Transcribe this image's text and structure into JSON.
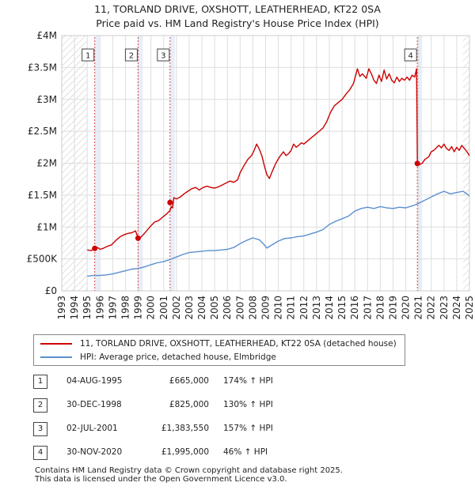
{
  "title_line1": "11, TORLAND DRIVE, OXSHOTT, LEATHERHEAD, KT22 0SA",
  "title_line2": "Price paid vs. HM Land Registry's House Price Index (HPI)",
  "colors": {
    "property": "#cc0000",
    "hpi": "#5b8fd0",
    "grid": "#dddddd",
    "band": "#e8eef8",
    "hatch": "#cccccc"
  },
  "chart_data": {
    "type": "line",
    "xlim": [
      1993,
      2025
    ],
    "ylim": [
      0,
      4000000
    ],
    "x_ticks": [
      "1993",
      "1994",
      "1995",
      "1996",
      "1997",
      "1998",
      "1999",
      "2000",
      "2001",
      "2002",
      "2003",
      "2004",
      "2005",
      "2006",
      "2007",
      "2008",
      "2009",
      "2010",
      "2011",
      "2012",
      "2013",
      "2014",
      "2015",
      "2016",
      "2017",
      "2018",
      "2019",
      "2020",
      "2021",
      "2022",
      "2023",
      "2024",
      "2025"
    ],
    "y_ticks": [
      {
        "value": 0,
        "label": "£0"
      },
      {
        "value": 500000,
        "label": "£500K"
      },
      {
        "value": 1000000,
        "label": "£1M"
      },
      {
        "value": 1500000,
        "label": "£1.5M"
      },
      {
        "value": 2000000,
        "label": "£2M"
      },
      {
        "value": 2500000,
        "label": "£2.5M"
      },
      {
        "value": 3000000,
        "label": "£3M"
      },
      {
        "value": 3500000,
        "label": "£3.5M"
      },
      {
        "value": 4000000,
        "label": "£4M"
      }
    ],
    "hatched_ranges": [
      [
        1993,
        1995.0
      ],
      [
        2024.5,
        2025
      ]
    ],
    "series": [
      {
        "name": "11, TORLAND DRIVE, OXSHOTT, LEATHERHEAD, KT22 0SA (detached house)",
        "color": "#cc0000",
        "points": [
          [
            1995.0,
            640000
          ],
          [
            1995.3,
            630000
          ],
          [
            1995.59,
            665000
          ],
          [
            1995.8,
            680000
          ],
          [
            1996.0,
            650000
          ],
          [
            1996.3,
            670000
          ],
          [
            1996.6,
            700000
          ],
          [
            1996.9,
            720000
          ],
          [
            1997.1,
            760000
          ],
          [
            1997.3,
            800000
          ],
          [
            1997.6,
            850000
          ],
          [
            1997.9,
            880000
          ],
          [
            1998.2,
            900000
          ],
          [
            1998.5,
            910000
          ],
          [
            1998.8,
            940000
          ],
          [
            1998.99,
            825000
          ],
          [
            1999.1,
            820000
          ],
          [
            1999.4,
            880000
          ],
          [
            1999.7,
            950000
          ],
          [
            2000.0,
            1020000
          ],
          [
            2000.3,
            1080000
          ],
          [
            2000.6,
            1100000
          ],
          [
            2000.9,
            1150000
          ],
          [
            2001.2,
            1200000
          ],
          [
            2001.5,
            1260000
          ],
          [
            2001.6,
            1320000
          ],
          [
            2001.7,
            1300000
          ],
          [
            2001.8,
            1460000
          ],
          [
            2002.0,
            1440000
          ],
          [
            2002.3,
            1470000
          ],
          [
            2002.6,
            1520000
          ],
          [
            2002.9,
            1560000
          ],
          [
            2003.2,
            1600000
          ],
          [
            2003.5,
            1620000
          ],
          [
            2003.8,
            1580000
          ],
          [
            2004.1,
            1620000
          ],
          [
            2004.4,
            1640000
          ],
          [
            2004.7,
            1620000
          ],
          [
            2005.0,
            1610000
          ],
          [
            2005.3,
            1630000
          ],
          [
            2005.6,
            1660000
          ],
          [
            2005.9,
            1690000
          ],
          [
            2006.2,
            1720000
          ],
          [
            2006.5,
            1700000
          ],
          [
            2006.8,
            1740000
          ],
          [
            2007.0,
            1850000
          ],
          [
            2007.3,
            1960000
          ],
          [
            2007.6,
            2060000
          ],
          [
            2007.9,
            2120000
          ],
          [
            2008.1,
            2200000
          ],
          [
            2008.3,
            2300000
          ],
          [
            2008.5,
            2220000
          ],
          [
            2008.7,
            2120000
          ],
          [
            2008.9,
            1960000
          ],
          [
            2009.1,
            1820000
          ],
          [
            2009.3,
            1760000
          ],
          [
            2009.5,
            1860000
          ],
          [
            2009.8,
            2000000
          ],
          [
            2010.1,
            2100000
          ],
          [
            2010.4,
            2180000
          ],
          [
            2010.6,
            2120000
          ],
          [
            2010.8,
            2150000
          ],
          [
            2011.0,
            2200000
          ],
          [
            2011.2,
            2300000
          ],
          [
            2011.4,
            2250000
          ],
          [
            2011.6,
            2280000
          ],
          [
            2011.8,
            2320000
          ],
          [
            2012.0,
            2300000
          ],
          [
            2012.3,
            2350000
          ],
          [
            2012.6,
            2400000
          ],
          [
            2012.9,
            2450000
          ],
          [
            2013.2,
            2500000
          ],
          [
            2013.5,
            2550000
          ],
          [
            2013.8,
            2650000
          ],
          [
            2014.1,
            2800000
          ],
          [
            2014.4,
            2900000
          ],
          [
            2014.7,
            2950000
          ],
          [
            2015.0,
            3000000
          ],
          [
            2015.3,
            3080000
          ],
          [
            2015.6,
            3150000
          ],
          [
            2015.9,
            3250000
          ],
          [
            2016.1,
            3400000
          ],
          [
            2016.2,
            3480000
          ],
          [
            2016.4,
            3360000
          ],
          [
            2016.6,
            3400000
          ],
          [
            2016.9,
            3330000
          ],
          [
            2017.1,
            3480000
          ],
          [
            2017.3,
            3400000
          ],
          [
            2017.5,
            3300000
          ],
          [
            2017.7,
            3250000
          ],
          [
            2017.9,
            3380000
          ],
          [
            2018.1,
            3280000
          ],
          [
            2018.3,
            3460000
          ],
          [
            2018.5,
            3320000
          ],
          [
            2018.7,
            3400000
          ],
          [
            2018.9,
            3300000
          ],
          [
            2019.1,
            3260000
          ],
          [
            2019.3,
            3350000
          ],
          [
            2019.5,
            3280000
          ],
          [
            2019.7,
            3330000
          ],
          [
            2019.9,
            3300000
          ],
          [
            2020.1,
            3350000
          ],
          [
            2020.3,
            3300000
          ],
          [
            2020.5,
            3380000
          ],
          [
            2020.7,
            3350000
          ],
          [
            2020.85,
            3480000
          ],
          [
            2020.91,
            1995000
          ],
          [
            2021.1,
            1980000
          ],
          [
            2021.3,
            2000000
          ],
          [
            2021.5,
            2060000
          ],
          [
            2021.8,
            2100000
          ],
          [
            2022.0,
            2180000
          ],
          [
            2022.2,
            2200000
          ],
          [
            2022.4,
            2240000
          ],
          [
            2022.6,
            2280000
          ],
          [
            2022.8,
            2240000
          ],
          [
            2023.0,
            2300000
          ],
          [
            2023.2,
            2230000
          ],
          [
            2023.4,
            2200000
          ],
          [
            2023.6,
            2260000
          ],
          [
            2023.8,
            2180000
          ],
          [
            2024.0,
            2250000
          ],
          [
            2024.2,
            2200000
          ],
          [
            2024.4,
            2280000
          ],
          [
            2024.6,
            2230000
          ],
          [
            2024.8,
            2180000
          ],
          [
            2025.0,
            2120000
          ]
        ]
      },
      {
        "name": "HPI: Average price, detached house, Elmbridge",
        "color": "#5b8fd0",
        "points": [
          [
            1995.0,
            230000
          ],
          [
            1995.5,
            240000
          ],
          [
            1996.0,
            242000
          ],
          [
            1996.5,
            250000
          ],
          [
            1997.0,
            265000
          ],
          [
            1997.5,
            290000
          ],
          [
            1998.0,
            315000
          ],
          [
            1998.5,
            340000
          ],
          [
            1999.0,
            350000
          ],
          [
            1999.5,
            375000
          ],
          [
            2000.0,
            410000
          ],
          [
            2000.5,
            440000
          ],
          [
            2001.0,
            460000
          ],
          [
            2001.5,
            490000
          ],
          [
            2002.0,
            530000
          ],
          [
            2002.5,
            570000
          ],
          [
            2003.0,
            600000
          ],
          [
            2003.5,
            610000
          ],
          [
            2004.0,
            620000
          ],
          [
            2004.5,
            630000
          ],
          [
            2005.0,
            630000
          ],
          [
            2005.5,
            640000
          ],
          [
            2006.0,
            650000
          ],
          [
            2006.5,
            680000
          ],
          [
            2007.0,
            740000
          ],
          [
            2007.5,
            790000
          ],
          [
            2008.0,
            830000
          ],
          [
            2008.5,
            800000
          ],
          [
            2008.9,
            720000
          ],
          [
            2009.1,
            670000
          ],
          [
            2009.5,
            720000
          ],
          [
            2010.0,
            780000
          ],
          [
            2010.5,
            820000
          ],
          [
            2011.0,
            830000
          ],
          [
            2011.5,
            850000
          ],
          [
            2012.0,
            860000
          ],
          [
            2012.5,
            890000
          ],
          [
            2013.0,
            920000
          ],
          [
            2013.5,
            960000
          ],
          [
            2014.0,
            1040000
          ],
          [
            2014.5,
            1090000
          ],
          [
            2015.0,
            1130000
          ],
          [
            2015.5,
            1170000
          ],
          [
            2016.0,
            1250000
          ],
          [
            2016.5,
            1290000
          ],
          [
            2017.0,
            1310000
          ],
          [
            2017.5,
            1290000
          ],
          [
            2018.0,
            1320000
          ],
          [
            2018.5,
            1300000
          ],
          [
            2019.0,
            1290000
          ],
          [
            2019.5,
            1310000
          ],
          [
            2020.0,
            1300000
          ],
          [
            2020.5,
            1330000
          ],
          [
            2021.0,
            1370000
          ],
          [
            2021.5,
            1420000
          ],
          [
            2022.0,
            1470000
          ],
          [
            2022.5,
            1520000
          ],
          [
            2023.0,
            1560000
          ],
          [
            2023.5,
            1520000
          ],
          [
            2024.0,
            1540000
          ],
          [
            2024.5,
            1560000
          ],
          [
            2025.0,
            1490000
          ]
        ]
      }
    ],
    "sales": [
      {
        "label": "1",
        "x": 1995.59,
        "y": 665000
      },
      {
        "label": "2",
        "x": 1998.99,
        "y": 825000
      },
      {
        "label": "3",
        "x": 2001.5,
        "y": 1383550
      },
      {
        "label": "4",
        "x": 2020.91,
        "y": 1995000
      }
    ]
  },
  "legend": {
    "property": "11, TORLAND DRIVE, OXSHOTT, LEATHERHEAD, KT22 0SA (detached house)",
    "hpi": "HPI: Average price, detached house, Elmbridge"
  },
  "transactions": [
    {
      "id": "1",
      "date": "04-AUG-1995",
      "price": "£665,000",
      "hpi": "174% ↑ HPI"
    },
    {
      "id": "2",
      "date": "30-DEC-1998",
      "price": "£825,000",
      "hpi": "130% ↑ HPI"
    },
    {
      "id": "3",
      "date": "02-JUL-2001",
      "price": "£1,383,550",
      "hpi": "157% ↑ HPI"
    },
    {
      "id": "4",
      "date": "30-NOV-2020",
      "price": "£1,995,000",
      "hpi": "46% ↑ HPI"
    }
  ],
  "footer_line1": "Contains HM Land Registry data © Crown copyright and database right 2025.",
  "footer_line2": "This data is licensed under the Open Government Licence v3.0."
}
